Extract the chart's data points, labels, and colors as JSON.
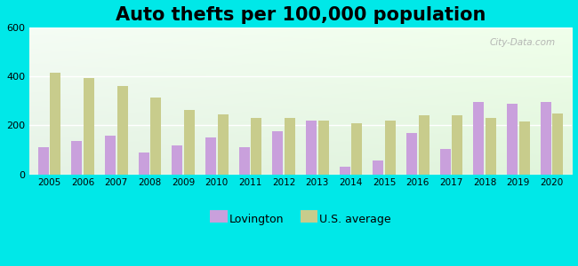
{
  "title": "Auto thefts per 100,000 population",
  "years": [
    2005,
    2006,
    2007,
    2008,
    2009,
    2010,
    2011,
    2012,
    2013,
    2014,
    2015,
    2016,
    2017,
    2018,
    2019,
    2020
  ],
  "lovington": [
    110,
    135,
    160,
    90,
    120,
    150,
    110,
    175,
    220,
    30,
    55,
    170,
    105,
    295,
    290,
    295
  ],
  "us_average": [
    415,
    395,
    360,
    315,
    265,
    245,
    230,
    230,
    220,
    210,
    220,
    240,
    240,
    230,
    215,
    250
  ],
  "lovington_color": "#c9a0dc",
  "us_average_color": "#c8cc8c",
  "ylim": [
    0,
    600
  ],
  "yticks": [
    0,
    200,
    400,
    600
  ],
  "outer_bg": "#00e8e8",
  "bar_width": 0.32,
  "legend_lovington": "Lovington",
  "legend_us": "U.S. average",
  "title_fontsize": 15,
  "watermark": "City-Data.com",
  "gradient_colors_top": "#f0faf0",
  "gradient_colors_bottom": "#d8eed8",
  "gradient_right": "#e8f8f0"
}
